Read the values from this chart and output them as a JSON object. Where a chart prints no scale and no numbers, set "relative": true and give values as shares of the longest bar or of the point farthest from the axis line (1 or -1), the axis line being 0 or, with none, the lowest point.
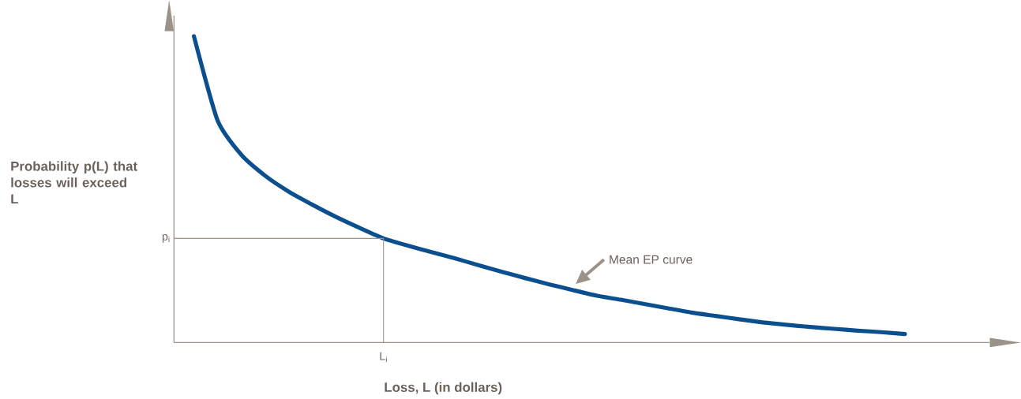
{
  "chart_data": {
    "type": "line",
    "relative": true,
    "ylabel": "Probability p(L) that losses will exceed L",
    "xlabel": "Loss, L (in dollars)",
    "categories": [
      null,
      null,
      null,
      null,
      null,
      null,
      null,
      null,
      null,
      null,
      null,
      null,
      null,
      null,
      null,
      null,
      null,
      null,
      null,
      null,
      null,
      null,
      null,
      null,
      null,
      null,
      null,
      null,
      null,
      null,
      null
    ],
    "series": [
      {
        "color": "#0b4f8e",
        "values": [
          1.0,
          0.725,
          0.613,
          0.545,
          0.493,
          0.45,
          0.41,
          0.374,
          0.34,
          0.317,
          0.296,
          0.275,
          0.253,
          0.231,
          0.21,
          0.19,
          0.171,
          0.153,
          0.14,
          0.126,
          0.112,
          0.098,
          0.087,
          0.076,
          0.066,
          0.058,
          0.051,
          0.045,
          0.039,
          0.034,
          0.028
        ]
      }
    ],
    "annotations": [
      "p$_{i}$",
      "L$_{i}$",
      "Mean EP curve"
    ]
  }
}
